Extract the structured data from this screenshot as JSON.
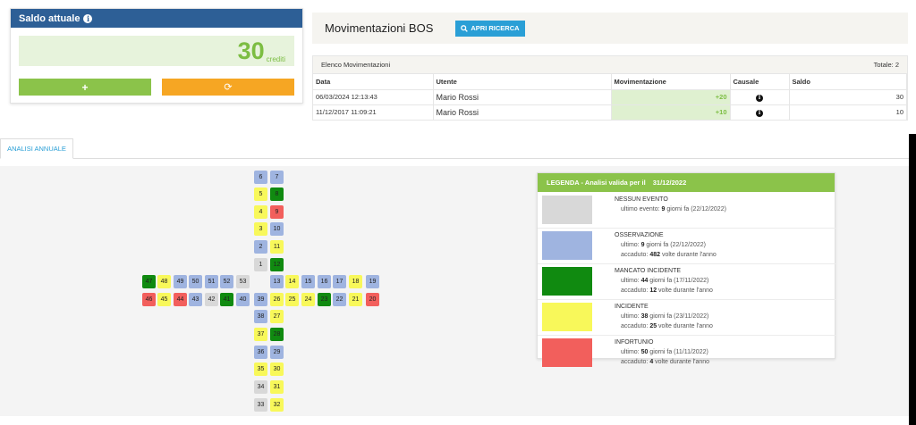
{
  "saldo": {
    "title": "Saldo attuale",
    "value": "30",
    "unit": "crediti",
    "plus_label": "+",
    "refresh_label": "⟳"
  },
  "movimentazioni": {
    "title": "Movimentazioni BOS",
    "search_label": "APRI RICERCA",
    "list_title": "Elenco Movimentazioni",
    "total": "Totale: 2",
    "columns": [
      "Data",
      "Utente",
      "Movimentazione",
      "Causale",
      "Saldo"
    ],
    "rows": [
      {
        "data": "06/03/2024 12:13:43",
        "utente": "Mario Rossi",
        "mov": "+20",
        "saldo": "30"
      },
      {
        "data": "11/12/2017 11:09:21",
        "utente": "Mario Rossi",
        "mov": "+10",
        "saldo": "10"
      }
    ]
  },
  "tabs": [
    "ANALISI ANNUALE"
  ],
  "calendar": {
    "cells": [
      {
        "n": "6",
        "c": "blue"
      },
      {
        "n": "7",
        "c": "blue"
      },
      {
        "n": "5",
        "c": "yellow"
      },
      {
        "n": "8",
        "c": "green"
      },
      {
        "n": "4",
        "c": "yellow"
      },
      {
        "n": "9",
        "c": "red"
      },
      {
        "n": "3",
        "c": "yellow"
      },
      {
        "n": "10",
        "c": "blue"
      },
      {
        "n": "2",
        "c": "blue"
      },
      {
        "n": "11",
        "c": "yellow"
      },
      {
        "n": "1",
        "c": "grey"
      },
      {
        "n": "12",
        "c": "green"
      },
      {
        "n": "47",
        "c": "green"
      },
      {
        "n": "48",
        "c": "yellow"
      },
      {
        "n": "49",
        "c": "blue"
      },
      {
        "n": "50",
        "c": "blue"
      },
      {
        "n": "51",
        "c": "blue"
      },
      {
        "n": "52",
        "c": "blue"
      },
      {
        "n": "53",
        "c": "grey"
      },
      {
        "n": "13",
        "c": "blue"
      },
      {
        "n": "14",
        "c": "yellow"
      },
      {
        "n": "15",
        "c": "blue"
      },
      {
        "n": "16",
        "c": "blue"
      },
      {
        "n": "17",
        "c": "blue"
      },
      {
        "n": "18",
        "c": "yellow"
      },
      {
        "n": "19",
        "c": "blue"
      },
      {
        "n": "46",
        "c": "red"
      },
      {
        "n": "45",
        "c": "yellow"
      },
      {
        "n": "44",
        "c": "red"
      },
      {
        "n": "43",
        "c": "blue"
      },
      {
        "n": "42",
        "c": "grey"
      },
      {
        "n": "41",
        "c": "green"
      },
      {
        "n": "40",
        "c": "blue"
      },
      {
        "n": "39",
        "c": "blue"
      },
      {
        "n": "26",
        "c": "yellow"
      },
      {
        "n": "25",
        "c": "yellow"
      },
      {
        "n": "24",
        "c": "yellow"
      },
      {
        "n": "23",
        "c": "green"
      },
      {
        "n": "22",
        "c": "blue"
      },
      {
        "n": "21",
        "c": "yellow"
      },
      {
        "n": "20",
        "c": "red"
      },
      {
        "n": "38",
        "c": "blue"
      },
      {
        "n": "27",
        "c": "yellow"
      },
      {
        "n": "37",
        "c": "yellow"
      },
      {
        "n": "28",
        "c": "green"
      },
      {
        "n": "36",
        "c": "blue"
      },
      {
        "n": "29",
        "c": "blue"
      },
      {
        "n": "35",
        "c": "yellow"
      },
      {
        "n": "30",
        "c": "yellow"
      },
      {
        "n": "34",
        "c": "grey"
      },
      {
        "n": "31",
        "c": "yellow"
      },
      {
        "n": "33",
        "c": "grey"
      },
      {
        "n": "32",
        "c": "yellow"
      }
    ]
  },
  "legend": {
    "title": "LEGENDA - Analisi valida per il",
    "date": "31/12/2022",
    "items": [
      {
        "name": "NESSUN EVENTO",
        "color": "#d8d8d8",
        "line1_pre": "ultimo evento:",
        "line1_num": "9",
        "line1_post": "giorni fa (22/12/2022)",
        "line2_pre": "",
        "line2_num": "",
        "line2_post": ""
      },
      {
        "name": "OSSERVAZIONE",
        "color": "#9fb4e0",
        "line1_pre": "ultimo:",
        "line1_num": "9",
        "line1_post": "giorni fa (22/12/2022)",
        "line2_pre": "accaduto:",
        "line2_num": "482",
        "line2_post": "volte durante l'anno"
      },
      {
        "name": "MANCATO INCIDENTE",
        "color": "#108a10",
        "line1_pre": "ultimo:",
        "line1_num": "44",
        "line1_post": "giorni fa (17/11/2022)",
        "line2_pre": "accaduto:",
        "line2_num": "12",
        "line2_post": "volte durante l'anno"
      },
      {
        "name": "INCIDENTE",
        "color": "#f8f85a",
        "line1_pre": "ultimo:",
        "line1_num": "38",
        "line1_post": "giorni fa (23/11/2022)",
        "line2_pre": "accaduto:",
        "line2_num": "25",
        "line2_post": "volte durante l'anno"
      },
      {
        "name": "INFORTUNIO",
        "color": "#f25f5c",
        "line1_pre": "ultimo:",
        "line1_num": "50",
        "line1_post": "giorni fa (11/11/2022)",
        "line2_pre": "accaduto:",
        "line2_num": "4",
        "line2_post": "volte durante l'anno"
      }
    ]
  }
}
